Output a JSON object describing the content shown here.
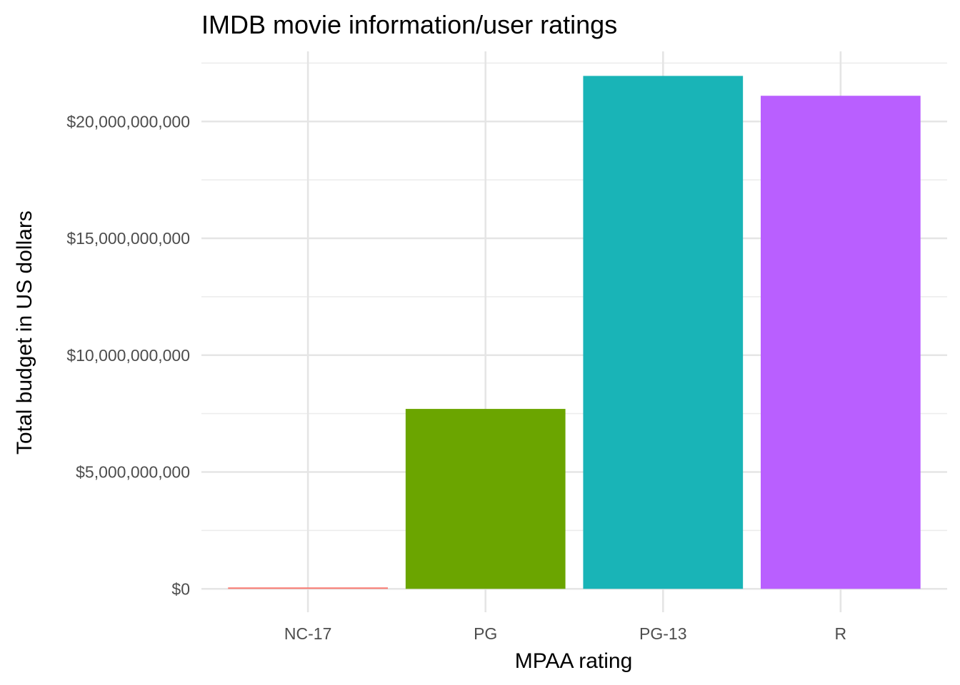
{
  "chart_data": {
    "type": "bar",
    "title": "IMDB movie information/user ratings",
    "xlabel": "MPAA rating",
    "ylabel": "Total budget in US dollars",
    "categories": [
      "NC-17",
      "PG",
      "PG-13",
      "R"
    ],
    "values": [
      60000000,
      7700000000,
      21950000000,
      21100000000
    ],
    "colors": [
      "#F8766D",
      "#6BA500",
      "#19B4B7",
      "#B95FFF"
    ],
    "ylim": [
      -1000000000,
      23000000000
    ],
    "yticks": [
      0,
      5000000000,
      10000000000,
      15000000000,
      20000000000
    ],
    "ytick_labels": [
      "$0",
      "$5,000,000,000",
      "$10,000,000,000",
      "$15,000,000,000",
      "$20,000,000,000"
    ],
    "grid": true,
    "legend": "none"
  }
}
